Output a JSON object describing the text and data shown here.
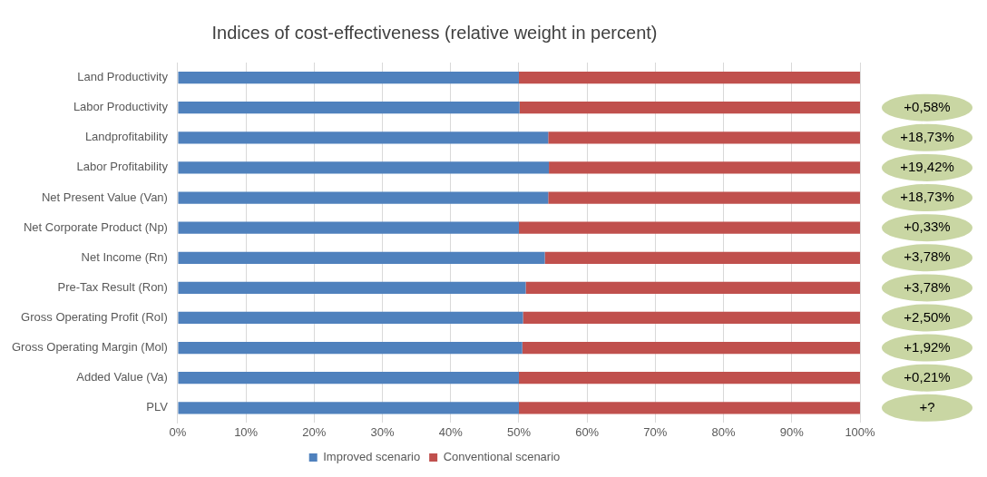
{
  "chart_data": {
    "type": "bar",
    "orientation": "horizontal",
    "stacked": true,
    "title": "Indices of cost-effectiveness (relative weight in percent)",
    "categories": [
      "Land Productivity",
      "Labor Productivity",
      "Landprofitability",
      "Labor Profitability",
      "Net Present Value (Van)",
      "Net Corporate Product (Np)",
      "Net Income (Rn)",
      "Pre-Tax Result (Ron)",
      "Gross Operating Profit (RoI)",
      "Gross Operating Margin (Mol)",
      "Added Value (Va)",
      "PLV"
    ],
    "series": [
      {
        "name": "Improved scenario",
        "color": "#4f81bd",
        "values": [
          50.0,
          50.1,
          54.3,
          54.4,
          54.3,
          50.0,
          53.8,
          51.0,
          50.6,
          50.5,
          50.0,
          50.0
        ]
      },
      {
        "name": "Conventional scenario",
        "color": "#c0504d",
        "values": [
          50.0,
          49.9,
          45.7,
          45.6,
          45.7,
          50.0,
          46.2,
          49.0,
          49.4,
          49.5,
          50.0,
          50.0
        ]
      }
    ],
    "xlim": [
      0,
      100
    ],
    "xticks": [
      {
        "value": 0,
        "label": "0%"
      },
      {
        "value": 10,
        "label": "10%"
      },
      {
        "value": 20,
        "label": "20%"
      },
      {
        "value": 30,
        "label": "30%"
      },
      {
        "value": 40,
        "label": "40%"
      },
      {
        "value": 50,
        "label": "50%"
      },
      {
        "value": 60,
        "label": "60%"
      },
      {
        "value": 70,
        "label": "70%"
      },
      {
        "value": 80,
        "label": "80%"
      },
      {
        "value": 90,
        "label": "90%"
      },
      {
        "value": 100,
        "label": "100%"
      }
    ],
    "grid": "x",
    "legend": "bottom",
    "annotations": [
      "+0,58%",
      "+18,73%",
      "+19,42%",
      "+18,73%",
      "+0,33%",
      "+3,78%",
      "+3,78%",
      "+2,50%",
      "+1,92%",
      "+0,21%",
      "+?"
    ]
  }
}
